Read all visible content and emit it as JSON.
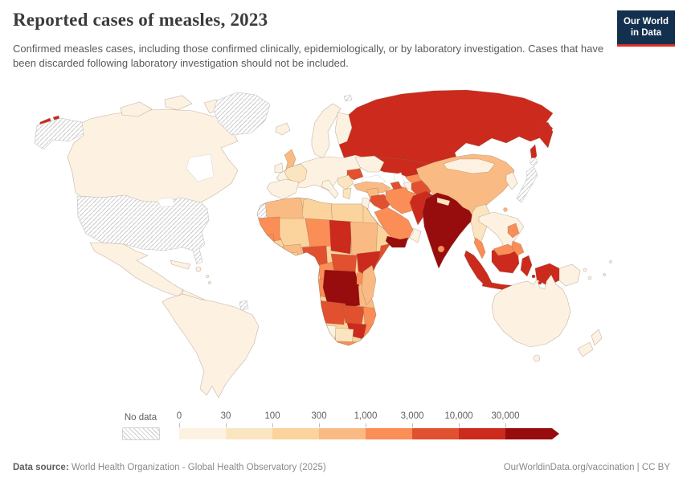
{
  "header": {
    "title": "Reported cases of measles, 2023",
    "subtitle": "Confirmed measles cases, including those confirmed clinically, epidemiologically, or by laboratory investigation. Cases that have been discarded following laboratory investigation should not be included."
  },
  "logo": {
    "line1": "Our World",
    "line2": "in Data",
    "bg_color": "#13304e",
    "accent_color": "#dc2f27"
  },
  "legend": {
    "no_data_label": "No data",
    "bins": [
      {
        "tick": "0",
        "range": "0-30",
        "color": "#fdf2e2"
      },
      {
        "tick": "30",
        "range": "30-100",
        "color": "#fbe5c0"
      },
      {
        "tick": "100",
        "range": "100-300",
        "color": "#fbd39c"
      },
      {
        "tick": "300",
        "range": "300-1,000",
        "color": "#faba83"
      },
      {
        "tick": "1,000",
        "range": "1,000-3,000",
        "color": "#fb8d57"
      },
      {
        "tick": "3,000",
        "range": "3,000-10,000",
        "color": "#e1512f"
      },
      {
        "tick": "10,000",
        "range": "10,000-30,000",
        "color": "#cb2a1d"
      },
      {
        "tick": "30,000",
        "range": "30,000+",
        "color": "#970c0c"
      }
    ],
    "no_data_pattern": "diagonal-hatch"
  },
  "footer": {
    "source_label": "Data source:",
    "source_text": " World Health Organization - Global Health Observatory (2025)",
    "credit_text": "OurWorldinData.org/vaccination | CC BY"
  },
  "chart_data": {
    "type": "heatmap",
    "subtype": "choropleth_world_map",
    "title": "Reported cases of measles, 2023",
    "year": 2023,
    "unit": "reported measles cases",
    "scale": "binned, quasi-logarithmic",
    "legend_position": "bottom-left",
    "bin_edges": [
      0,
      30,
      100,
      300,
      1000,
      3000,
      10000,
      30000
    ],
    "no_data_regions": [
      "United States",
      "Alaska (USA)",
      "Greenland",
      "Morocco & Western Sahara",
      "Japan",
      "French Guiana",
      "Svalbard"
    ],
    "country_bins": {
      "canada": 1,
      "mexico": 1,
      "central_america": 1,
      "cuba": 1,
      "hispaniola": 1,
      "caribbean": 1,
      "south_america": 1,
      "iceland": 1,
      "ireland": 1,
      "norway_sweden": 1,
      "finland": 1,
      "europe_mainland": 1,
      "iberia": 1,
      "italy": 1,
      "ukraine": 1,
      "jordan_israel": 1,
      "oman": 1,
      "turkmenistan": 1,
      "mongolia": 1,
      "korea": 1,
      "indochina": 1,
      "papua_new_guinea": 1,
      "pacific_islands": 1,
      "australia": 1,
      "new_zealand": 1,
      "namibia": 1,
      "myanmar": 2,
      "balkans": 2,
      "greece": 2,
      "botswana": 2,
      "nepal": 2,
      "guinea": 2,
      "france": 2,
      "libya": 3,
      "egypt": 3,
      "mali": 3,
      "ghana_cote_divoire": 3,
      "west_africa_other": 3,
      "united_kingdom": 4,
      "turkey": 4,
      "syria": 4,
      "china": 4,
      "taiwan": 4,
      "algeria": 4,
      "sudan": 4,
      "kenya": 4,
      "tanzania": 4,
      "madagascar": 4,
      "burkina_faso": 4,
      "iran": 5,
      "saudi_arabia": 5,
      "uzbekistan": 5,
      "mauritania": 5,
      "niger": 5,
      "senegal": 5,
      "cameroon": 5,
      "uganda": 5,
      "congo_gabon": 5,
      "mozambique": 5,
      "south_africa": 5,
      "philippines": 5,
      "malaysia": 5,
      "sri_lanka": 5,
      "nigeria": 6,
      "somalia": 6,
      "central_african_republic": 6,
      "angola": 6,
      "zambia": 6,
      "romania": 6,
      "azerbaijan": 6,
      "kyrgyzstan": 6,
      "iraq": 6,
      "afghanistan": 6,
      "russia": 7,
      "kazakhstan": 7,
      "chad": 7,
      "ethiopia": 7,
      "zimbabwe": 7,
      "pakistan": 7,
      "indonesia": 7,
      "india": 8,
      "bangladesh": 8,
      "yemen": 8,
      "dr_congo": 8,
      "united_states": "no_data",
      "alaska_usa": "no_data",
      "greenland": "no_data",
      "morocco_w_sahara": "no_data",
      "japan": "no_data",
      "french_guiana": "no_data",
      "svalbard": "no_data"
    }
  }
}
